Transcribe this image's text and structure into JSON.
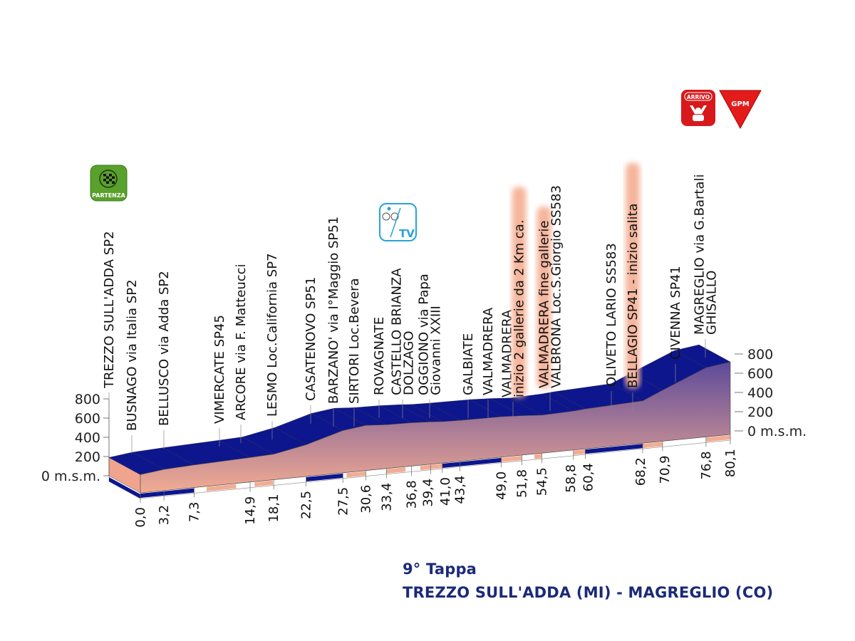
{
  "chart_data": {
    "type": "area",
    "title": "9° Tappa",
    "subtitle": "TREZZO SULL'ADDA (MI) - MAGREGLIO (CO)",
    "xlabel": "",
    "ylabel": "",
    "y_unit_label": "0 m.s.m.",
    "y_ticks": [
      "0 m.s.m.",
      "200",
      "400",
      "600",
      "800"
    ],
    "ylim": [
      0,
      800
    ],
    "xlim": [
      0,
      80.1
    ],
    "x_tick_labels": [
      "0,0",
      "3,2",
      "7,3",
      "14,9",
      "18,1",
      "22,5",
      "27,5",
      "30,6",
      "33,4",
      "36,8",
      "39,4",
      "41,0",
      "43,4",
      "49,0",
      "51,8",
      "54,5",
      "58,8",
      "60,4",
      "68,2",
      "70,9",
      "76,8",
      "80,1"
    ],
    "x_ticks_km": [
      0,
      3.2,
      7.3,
      14.9,
      18.1,
      22.5,
      27.5,
      30.6,
      33.4,
      36.8,
      39.4,
      41.0,
      43.4,
      49.0,
      51.8,
      54.5,
      58.8,
      60.4,
      68.2,
      70.9,
      76.8,
      80.1
    ],
    "profile": {
      "km": [
        0,
        3.2,
        7.3,
        14.9,
        18.1,
        22.5,
        27.5,
        30.6,
        33.4,
        36.8,
        39.4,
        41.0,
        43.4,
        49.0,
        51.8,
        54.5,
        58.8,
        60.4,
        68.2,
        70.9,
        76.8,
        80.1
      ],
      "elevation": [
        190,
        220,
        235,
        255,
        265,
        330,
        440,
        470,
        455,
        450,
        440,
        430,
        425,
        420,
        410,
        395,
        405,
        415,
        440,
        530,
        720,
        754
      ]
    },
    "places": [
      {
        "lines": [
          "TREZZO SULL'ADDA SP2"
        ]
      },
      {
        "lines": [
          "BUSNAGO via Italia SP2"
        ]
      },
      {
        "lines": [
          "BELLUSCO via Adda SP2"
        ]
      },
      {
        "lines": [
          "VIMERCATE SP45"
        ]
      },
      {
        "lines": [
          "ARCORE via F. Matteucci"
        ]
      },
      {
        "lines": [
          "LESMO Loc.California SP7"
        ]
      },
      {
        "lines": [
          "CASATENOVO SP51"
        ]
      },
      {
        "lines": [
          "BARZANO' via I°Maggio SP51"
        ]
      },
      {
        "lines": [
          "SIRTORI Loc.Bevera"
        ]
      },
      {
        "lines": [
          "ROVAGNATE"
        ]
      },
      {
        "lines": [
          "CASTELLO BRIANZA",
          "DOLZAGO"
        ]
      },
      {
        "lines": [
          "OGGIONO via Papa",
          "Giovanni XXIII"
        ]
      },
      {
        "lines": [
          "GALBIATE"
        ]
      },
      {
        "lines": [
          "VALMADRERA"
        ]
      },
      {
        "lines": [
          "VALMADRERA",
          "inizio 2 gallerie da 2 Km ca."
        ],
        "highlight": [
          1
        ]
      },
      {
        "lines": [
          "VALMADRERA  fine gallerie",
          "VALBRONA Loc.S.Giorgio SS583"
        ],
        "highlight": [
          0
        ]
      },
      {
        "lines": [
          "OLIVETO LARIO SS583"
        ]
      },
      {
        "lines": [
          "BELLAGIO SP41  -  inizio salita"
        ],
        "highlight": [
          0
        ]
      },
      {
        "lines": [
          "CIVENNA SP41"
        ]
      },
      {
        "lines": [
          "MAGREGLIO via G.Bartali",
          "GHISALLO"
        ]
      }
    ],
    "icons": {
      "start": {
        "label": "PARTENZA",
        "icon": "checkered-flag-icon",
        "color": "#5aa02c"
      },
      "tv": {
        "label": "TV",
        "icon": "cyclist-tv-icon",
        "color": "#29a3d6"
      },
      "finish": {
        "label": "ARRIVO",
        "icon": "arrival-icon",
        "color": "#d8191c"
      },
      "gpm": {
        "label": "GPM",
        "icon": "mountain-gpm-icon",
        "color": "#e41b1b"
      }
    },
    "colors": {
      "top_surface": "#0d168c",
      "face_top": "#5e4a9a",
      "face_bottom": "#f3ac92",
      "title": "#1b2a78"
    }
  }
}
